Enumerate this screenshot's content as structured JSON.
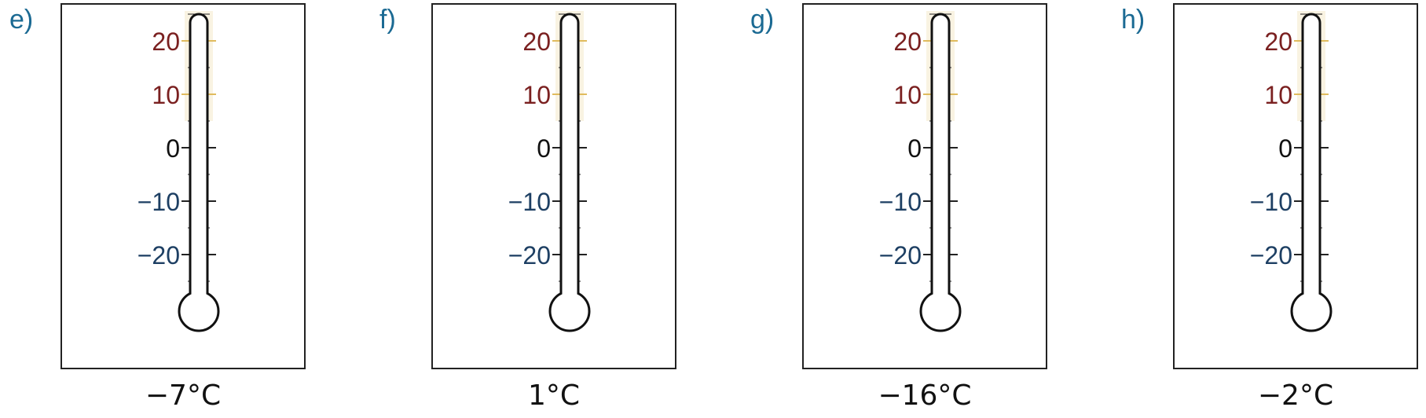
{
  "scale": {
    "min": -25,
    "max": 25,
    "minor_step": 1,
    "major_step": 10,
    "labels": [
      "20",
      "10",
      "0",
      "−10",
      "−20"
    ],
    "label_values": [
      20,
      10,
      0,
      -10,
      -20
    ]
  },
  "colors": {
    "letter": "#1b6a93",
    "positive_label": "#7a2020",
    "negative_label": "#1d3f63",
    "zero_label": "#111111",
    "highlight": "#e0bb5e"
  },
  "thermometers": [
    {
      "letter": "e)",
      "temperature": "−7°C",
      "value": -7
    },
    {
      "letter": "f)",
      "temperature": "1°C",
      "value": 1
    },
    {
      "letter": "g)",
      "temperature": "−16°C",
      "value": -16
    },
    {
      "letter": "h)",
      "temperature": "−2°C",
      "value": -2
    }
  ]
}
